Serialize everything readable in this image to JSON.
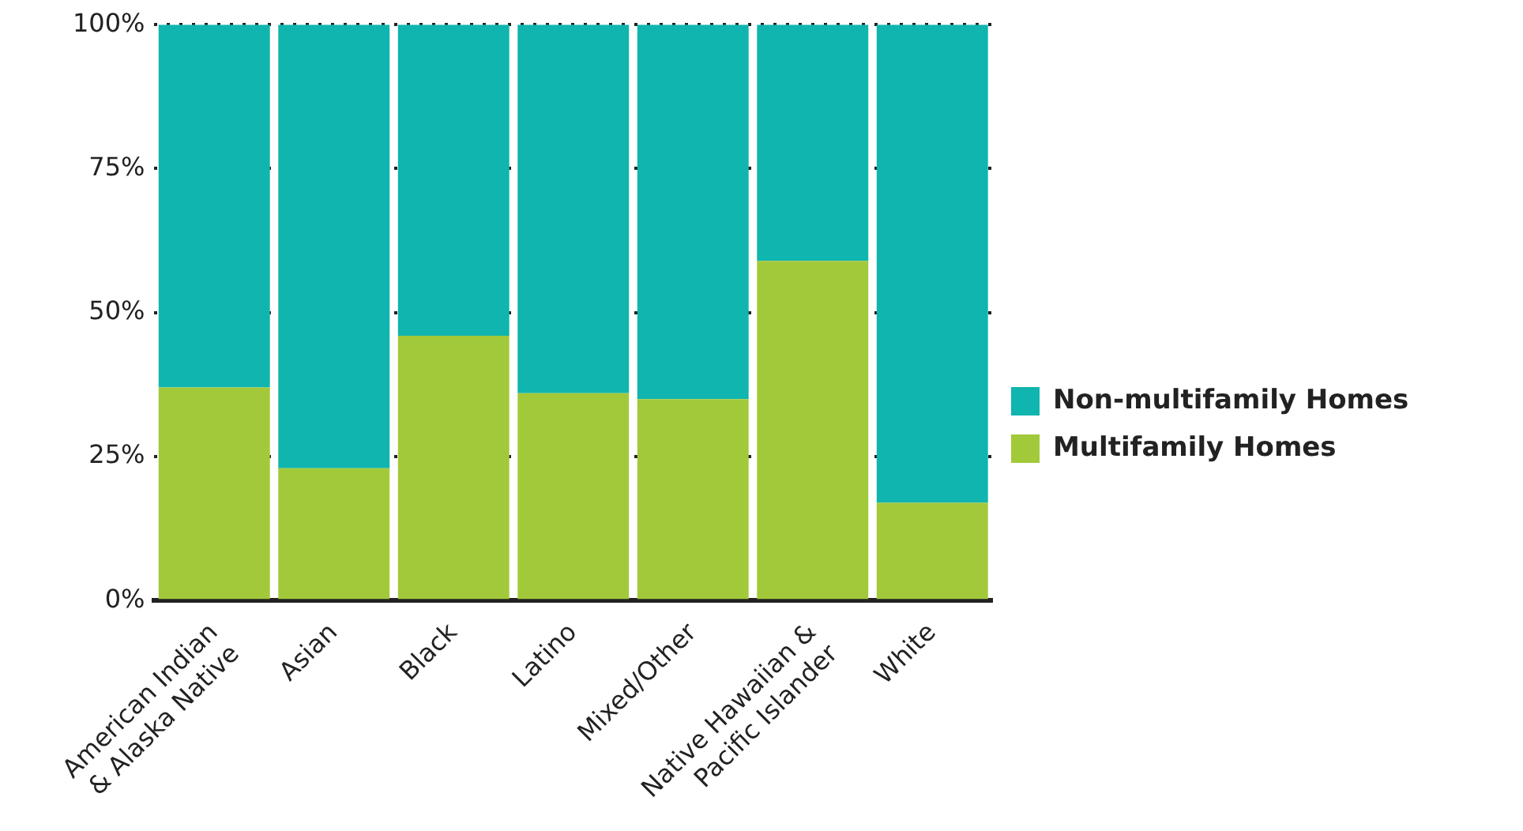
{
  "chart_data": {
    "type": "bar",
    "stacked": true,
    "categories": [
      "American Indian & Alaska Native",
      "Asian",
      "Black",
      "Latino",
      "Mixed/Other",
      "Native Hawaiian & Pacific Islander",
      "White"
    ],
    "series": [
      {
        "name": "Multifamily Homes",
        "color": "#a2c93a",
        "values": [
          37,
          23,
          46,
          36,
          35,
          59,
          17
        ]
      },
      {
        "name": "Non-multifamily Homes",
        "color": "#0fb5ae",
        "values": [
          63,
          77,
          54,
          64,
          65,
          41,
          83
        ]
      }
    ],
    "ylim": [
      0,
      100
    ],
    "yticks": [
      {
        "value": 0,
        "label": "0%"
      },
      {
        "value": 25,
        "label": "25%"
      },
      {
        "value": 50,
        "label": "50%"
      },
      {
        "value": 75,
        "label": "75%"
      },
      {
        "value": 100,
        "label": "100%"
      }
    ],
    "grid": "y",
    "line_style": "dotted",
    "legend": "right"
  }
}
